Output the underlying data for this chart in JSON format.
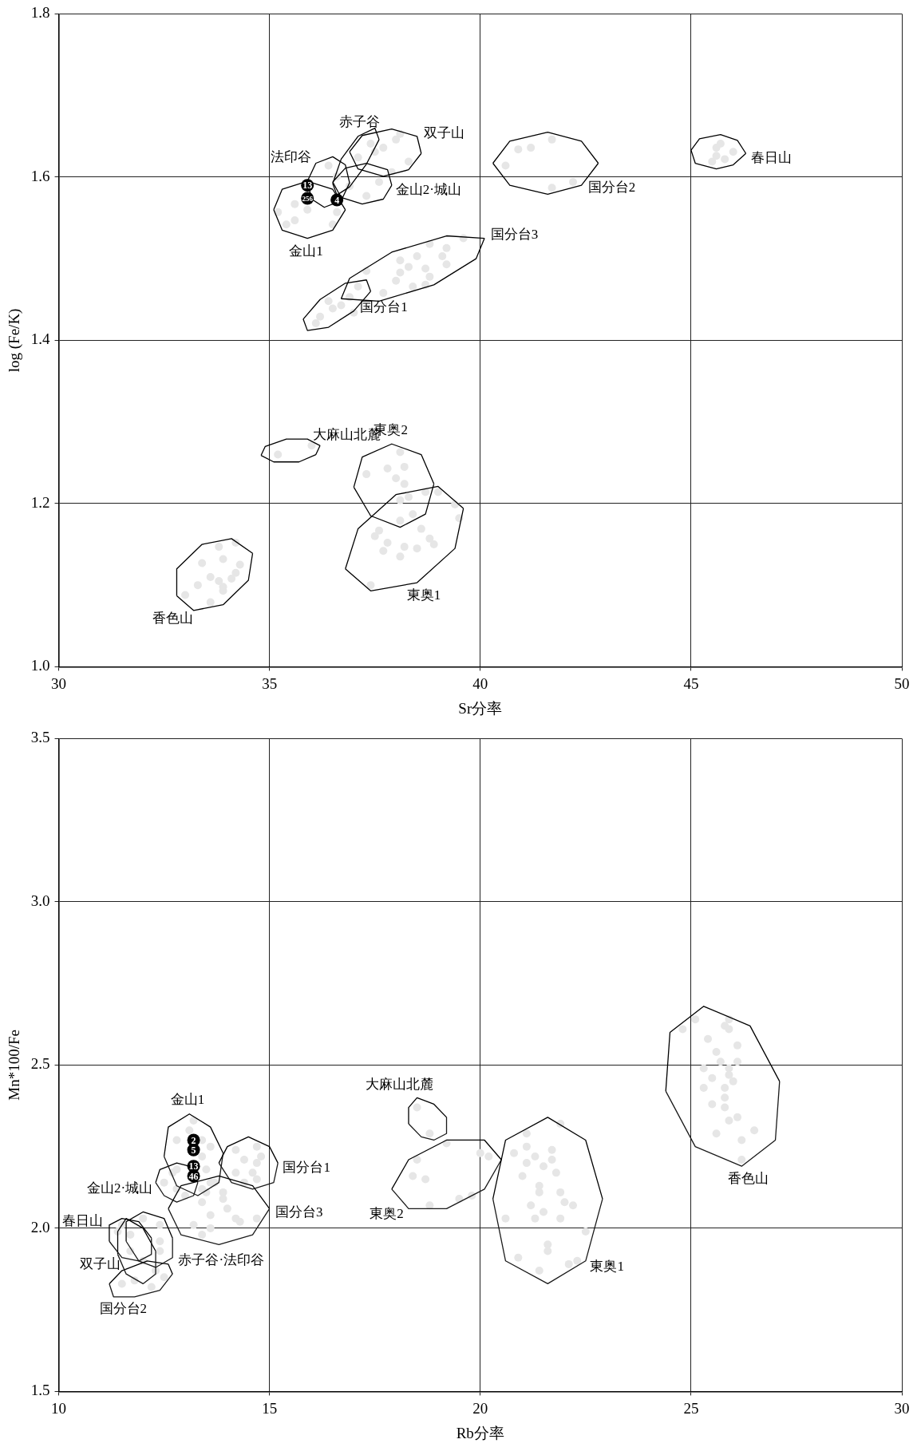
{
  "chart_data": [
    {
      "type": "scatter",
      "xlabel": "Sr分率",
      "ylabel": "log (Fe/K)",
      "xlim": [
        30,
        50
      ],
      "ylim": [
        1.0,
        1.8
      ],
      "xticks": [
        30,
        35,
        40,
        45,
        50
      ],
      "yticks": [
        {
          "value": 1,
          "label": "1.0"
        },
        1.2,
        1.4,
        1.6,
        1.8
      ],
      "grid": true,
      "series": [
        {
          "type": "scatter",
          "marker": "circle",
          "color": "#e6e6e6",
          "x": [
            45.7,
            46.0,
            45.8,
            45.6,
            45.5,
            45.6,
            41.7,
            41.2,
            40.9,
            40.6,
            42.2,
            41.7,
            39.6,
            39.2,
            38.8,
            39.1,
            39.2,
            38.7,
            38.8,
            38.7,
            38.4,
            38.5,
            38.1,
            38.0,
            37.7,
            37.3,
            38.3,
            38.1,
            37.1,
            36.9,
            36.7,
            36.5,
            36.2,
            36.1,
            37.0,
            36.4,
            38.1,
            38.0,
            37.7,
            38.3,
            37.9,
            37.4,
            37.1,
            36.4,
            36.6,
            37.6,
            37.3,
            36.6,
            36.5,
            35.9,
            35.6,
            35.2,
            35.4,
            35.6,
            36.9,
            37.5,
            38.1,
            38.2,
            37.8,
            37.3,
            38.0,
            38.2,
            39.0,
            38.7,
            38.3,
            38.1,
            39.4,
            39.5,
            38.4,
            38.1,
            38.6,
            38.8,
            38.9,
            38.5,
            37.6,
            37.5,
            37.8,
            37.7,
            38.1,
            38.2,
            37.4,
            36.0,
            35.2,
            34.2,
            33.8,
            33.9,
            34.3,
            34.2,
            34.1,
            33.9,
            33.9,
            33.4,
            33.6,
            33.3,
            33.0,
            33.6,
            33.8
          ],
          "values": [
            1.641,
            1.631,
            1.622,
            1.636,
            1.619,
            1.626,
            1.646,
            1.636,
            1.634,
            1.614,
            1.594,
            1.587,
            1.525,
            1.513,
            1.518,
            1.503,
            1.493,
            1.488,
            1.478,
            1.468,
            1.466,
            1.503,
            1.483,
            1.473,
            1.458,
            1.485,
            1.49,
            1.498,
            1.466,
            1.453,
            1.443,
            1.439,
            1.429,
            1.421,
            1.434,
            1.448,
            1.653,
            1.646,
            1.636,
            1.619,
            1.606,
            1.641,
            1.624,
            1.614,
            1.601,
            1.594,
            1.577,
            1.557,
            1.542,
            1.56,
            1.547,
            1.557,
            1.542,
            1.567,
            1.589,
            1.631,
            1.263,
            1.245,
            1.243,
            1.236,
            1.231,
            1.224,
            1.214,
            1.214,
            1.208,
            1.204,
            1.199,
            1.182,
            1.187,
            1.179,
            1.169,
            1.157,
            1.15,
            1.145,
            1.167,
            1.16,
            1.152,
            1.142,
            1.135,
            1.147,
            1.1,
            1.271,
            1.26,
            1.152,
            1.147,
            1.132,
            1.125,
            1.115,
            1.108,
            1.098,
            1.093,
            1.127,
            1.11,
            1.1,
            1.088,
            1.079,
            1.105
          ]
        },
        {
          "type": "line",
          "marker": "none",
          "color": "#000000",
          "x": [
            45.0,
            45.2,
            45.7,
            46.1,
            46.3
          ],
          "values": [
            1.633,
            1.647,
            1.652,
            1.645,
            1.629
          ]
        },
        {
          "type": "line",
          "marker": "none",
          "color": "#000000",
          "x": [
            45.0,
            45.1,
            45.6,
            46.0,
            46.3
          ],
          "values": [
            1.633,
            1.617,
            1.61,
            1.615,
            1.629
          ]
        },
        {
          "type": "line",
          "marker": "none",
          "color": "#000000",
          "x": [
            40.3,
            40.7,
            41.6,
            42.4,
            42.8
          ],
          "values": [
            1.617,
            1.644,
            1.655,
            1.644,
            1.617
          ]
        },
        {
          "type": "line",
          "marker": "none",
          "color": "#000000",
          "x": [
            40.3,
            40.7,
            41.6,
            42.4,
            42.8
          ],
          "values": [
            1.617,
            1.59,
            1.579,
            1.59,
            1.617
          ]
        },
        {
          "type": "line",
          "marker": "none",
          "color": "#000000",
          "x": [
            36.7,
            36.9,
            37.9,
            39.2,
            40.1
          ],
          "values": [
            1.451,
            1.476,
            1.508,
            1.528,
            1.525
          ]
        },
        {
          "type": "line",
          "marker": "none",
          "color": "#000000",
          "x": [
            36.7,
            37.6,
            38.9,
            39.9,
            40.1
          ],
          "values": [
            1.451,
            1.448,
            1.468,
            1.5,
            1.525
          ]
        },
        {
          "type": "line",
          "marker": "none",
          "color": "#000000",
          "x": [
            35.8,
            36.2,
            36.8,
            37.3,
            37.4
          ],
          "values": [
            1.426,
            1.45,
            1.47,
            1.474,
            1.46
          ]
        },
        {
          "type": "line",
          "marker": "none",
          "color": "#000000",
          "x": [
            35.8,
            35.9,
            36.4,
            37.0,
            37.4
          ],
          "values": [
            1.426,
            1.412,
            1.416,
            1.436,
            1.46
          ]
        },
        {
          "type": "line",
          "marker": "none",
          "color": "#000000",
          "x": [
            36.9,
            37.2,
            37.9,
            38.5,
            38.6
          ],
          "values": [
            1.631,
            1.651,
            1.659,
            1.65,
            1.629
          ]
        },
        {
          "type": "line",
          "marker": "none",
          "color": "#000000",
          "x": [
            36.9,
            37.1,
            37.7,
            38.3,
            38.6
          ],
          "values": [
            1.631,
            1.61,
            1.601,
            1.609,
            1.629
          ]
        },
        {
          "type": "line",
          "marker": "none",
          "color": "#000000",
          "x": [
            36.5,
            36.7,
            37.1,
            37.5,
            37.6
          ],
          "values": [
            1.592,
            1.622,
            1.65,
            1.66,
            1.646
          ]
        },
        {
          "type": "line",
          "marker": "none",
          "color": "#000000",
          "x": [
            36.5,
            36.6,
            36.9,
            37.3,
            37.6
          ],
          "values": [
            1.592,
            1.578,
            1.588,
            1.616,
            1.646
          ]
        },
        {
          "type": "line",
          "marker": "none",
          "color": "#000000",
          "x": [
            36.5,
            36.8,
            37.3,
            37.8,
            37.9
          ],
          "values": [
            1.594,
            1.611,
            1.617,
            1.609,
            1.59
          ]
        },
        {
          "type": "line",
          "marker": "none",
          "color": "#000000",
          "x": [
            36.5,
            36.7,
            37.2,
            37.7,
            37.9
          ],
          "values": [
            1.594,
            1.575,
            1.567,
            1.573,
            1.59
          ]
        },
        {
          "type": "line",
          "marker": "none",
          "color": "#000000",
          "x": [
            35.9,
            36.1,
            36.5,
            36.8,
            36.9
          ],
          "values": [
            1.595,
            1.617,
            1.625,
            1.615,
            1.593
          ]
        },
        {
          "type": "line",
          "marker": "none",
          "color": "#000000",
          "x": [
            35.9,
            36.0,
            36.3,
            36.7,
            36.9
          ],
          "values": [
            1.595,
            1.573,
            1.563,
            1.571,
            1.593
          ]
        },
        {
          "type": "line",
          "marker": "none",
          "color": "#000000",
          "x": [
            35.1,
            35.3,
            35.9,
            36.5,
            36.8
          ],
          "values": [
            1.56,
            1.585,
            1.595,
            1.585,
            1.56
          ]
        },
        {
          "type": "line",
          "marker": "none",
          "color": "#000000",
          "x": [
            35.1,
            35.3,
            35.9,
            36.5,
            36.8
          ],
          "values": [
            1.56,
            1.535,
            1.525,
            1.535,
            1.56
          ]
        },
        {
          "type": "line",
          "marker": "none",
          "color": "#000000",
          "x": [
            36.8,
            37.1,
            38.0,
            39.0,
            39.6
          ],
          "values": [
            1.12,
            1.169,
            1.211,
            1.221,
            1.194
          ]
        },
        {
          "type": "line",
          "marker": "none",
          "color": "#000000",
          "x": [
            36.8,
            37.4,
            38.5,
            39.4,
            39.6
          ],
          "values": [
            1.12,
            1.093,
            1.103,
            1.145,
            1.194
          ]
        },
        {
          "type": "line",
          "marker": "none",
          "color": "#000000",
          "x": [
            37.0,
            37.2,
            37.9,
            38.6,
            38.9
          ],
          "values": [
            1.22,
            1.257,
            1.273,
            1.26,
            1.224
          ]
        },
        {
          "type": "line",
          "marker": "none",
          "color": "#000000",
          "x": [
            37.0,
            37.4,
            38.1,
            38.7,
            38.9
          ],
          "values": [
            1.22,
            1.185,
            1.171,
            1.187,
            1.224
          ]
        },
        {
          "type": "line",
          "marker": "none",
          "color": "#000000",
          "x": [
            34.8,
            34.9,
            35.4,
            35.9,
            36.2
          ],
          "values": [
            1.259,
            1.27,
            1.279,
            1.279,
            1.271
          ]
        },
        {
          "type": "line",
          "marker": "none",
          "color": "#000000",
          "x": [
            34.8,
            35.1,
            35.7,
            36.1,
            36.2
          ],
          "values": [
            1.259,
            1.251,
            1.251,
            1.26,
            1.271
          ]
        },
        {
          "type": "line",
          "marker": "none",
          "color": "#000000",
          "x": [
            32.8,
            32.8,
            33.4,
            34.1,
            34.6
          ],
          "values": [
            1.087,
            1.12,
            1.15,
            1.157,
            1.139
          ]
        },
        {
          "type": "line",
          "marker": "none",
          "color": "#000000",
          "x": [
            32.8,
            33.2,
            33.9,
            34.5,
            34.6
          ],
          "values": [
            1.087,
            1.069,
            1.076,
            1.106,
            1.139
          ]
        },
        {
          "type": "scatter",
          "marker": "circle",
          "color": "#000000",
          "x": [
            36.6,
            35.9,
            35.9
          ],
          "values": [
            1.572,
            1.59,
            1.574
          ]
        }
      ],
      "annotations": [
        {
          "text": "4",
          "x": 36.6,
          "y": 1.572
        },
        {
          "text": "13",
          "x": 35.9,
          "y": 1.59
        },
        {
          "text": "256",
          "x": 35.9,
          "y": 1.574
        },
        {
          "text": "春日山",
          "x": 46.3,
          "y": 1.629
        },
        {
          "text": "国分台2",
          "x": 42.4,
          "y": 1.59
        },
        {
          "text": "国分台3",
          "x": 40.1,
          "y": 1.525
        },
        {
          "text": "国分台1",
          "x": 37.0,
          "y": 1.436
        },
        {
          "text": "双子山",
          "x": 38.5,
          "y": 1.65
        },
        {
          "text": "赤子谷",
          "x": 37.1,
          "y": 1.65
        },
        {
          "text": "金山2·城山",
          "x": 37.9,
          "y": 1.59
        },
        {
          "text": "法印谷",
          "x": 36.1,
          "y": 1.617
        },
        {
          "text": "金山1",
          "x": 35.9,
          "y": 1.525
        },
        {
          "text": "東奥1",
          "x": 38.5,
          "y": 1.103
        },
        {
          "text": "東奥2",
          "x": 37.9,
          "y": 1.273
        },
        {
          "text": "大麻山北麓",
          "x": 35.9,
          "y": 1.279
        },
        {
          "text": "香色山",
          "x": 33.2,
          "y": 1.069
        }
      ]
    },
    {
      "type": "scatter",
      "xlabel": "Rb分率",
      "ylabel": "Mn*100/Fe",
      "xlim": [
        10,
        30
      ],
      "ylim": [
        1.5,
        3.5
      ],
      "xticks": [
        10,
        15,
        20,
        25,
        30
      ],
      "yticks": [
        1.5,
        {
          "value": 2,
          "label": "2.0"
        },
        2.5,
        {
          "value": 3,
          "label": "3.0"
        },
        3.5
      ],
      "grid": true,
      "series": [
        {
          "type": "scatter",
          "marker": "circle",
          "color": "#e6e6e6",
          "x": [
            25.9,
            25.8,
            25.9,
            25.4,
            25.1,
            24.8,
            26.1,
            25.6,
            26.1,
            25.7,
            25.9,
            25.3,
            25.9,
            25.5,
            26.0,
            25.8,
            25.3,
            25.8,
            25.5,
            25.8,
            26.1,
            25.9,
            26.5,
            25.6,
            26.2,
            26.2,
            21.9,
            21.1,
            21.1,
            21.7,
            20.8,
            21.3,
            21.7,
            21.1,
            21.5,
            21.8,
            21.0,
            21.4,
            21.9,
            21.4,
            21.2,
            22.2,
            21.5,
            20.6,
            21.9,
            21.3,
            22.5,
            21.6,
            21.6,
            20.9,
            22.3,
            22.1,
            21.4,
            22.0,
            20.0,
            20.2,
            19.2,
            19.8,
            19.5,
            18.8,
            18.7,
            18.4,
            18.5,
            18.5,
            18.8,
            14.7,
            14.8,
            14.7,
            14.6,
            14.7,
            14.4,
            14.4,
            14.2,
            14.2,
            14.7,
            14.3,
            14.0,
            13.9,
            13.9,
            13.4,
            13.6,
            13.6,
            13.4,
            13.2,
            13.5,
            13.6,
            14.2,
            13.2,
            13.1,
            12.8,
            13.6,
            13.4,
            13.4,
            13.5,
            13.7,
            12.8,
            13.4,
            12.7,
            12.8,
            13.0,
            12.5,
            12.0,
            12.4,
            11.4,
            12.4,
            12.4,
            12.0,
            12.3,
            12.5,
            11.8,
            12.2,
            11.5,
            11.7,
            11.7,
            11.5
          ],
          "values": [
            2.64,
            2.62,
            2.61,
            2.58,
            2.64,
            2.61,
            2.56,
            2.54,
            2.51,
            2.51,
            2.49,
            2.49,
            2.47,
            2.46,
            2.45,
            2.43,
            2.43,
            2.4,
            2.38,
            2.37,
            2.34,
            2.33,
            2.3,
            2.29,
            2.27,
            2.21,
            2.32,
            2.29,
            2.25,
            2.24,
            2.23,
            2.22,
            2.21,
            2.2,
            2.19,
            2.17,
            2.16,
            2.13,
            2.11,
            2.11,
            2.07,
            2.07,
            2.05,
            2.03,
            2.03,
            2.03,
            1.99,
            1.95,
            1.93,
            1.91,
            1.9,
            1.89,
            1.87,
            2.08,
            2.23,
            2.22,
            2.26,
            2.1,
            2.09,
            2.07,
            2.15,
            2.16,
            2.21,
            2.37,
            2.29,
            2.25,
            2.22,
            2.2,
            2.17,
            2.15,
            2.14,
            2.21,
            2.17,
            2.24,
            2.03,
            2.02,
            2.06,
            2.09,
            2.11,
            2.08,
            2.04,
            2.0,
            1.98,
            2.01,
            2.11,
            2.14,
            2.03,
            2.33,
            2.3,
            2.27,
            2.25,
            2.22,
            2.27,
            2.18,
            2.14,
            2.18,
            2.12,
            2.17,
            2.12,
            2.1,
            2.14,
            2.03,
            2.01,
            1.99,
            1.96,
            1.93,
            1.9,
            1.87,
            1.85,
            1.84,
            1.82,
            1.83,
            1.93,
            1.98,
            2.01
          ]
        },
        {
          "type": "line",
          "marker": "none",
          "color": "#000000",
          "x": [
            24.4,
            24.5,
            25.3,
            26.4,
            27.1
          ],
          "values": [
            2.42,
            2.6,
            2.68,
            2.62,
            2.45
          ]
        },
        {
          "type": "line",
          "marker": "none",
          "color": "#1a1a1a",
          "x": [
            24.4,
            25.1,
            26.2,
            27.0,
            27.1
          ],
          "values": [
            2.42,
            2.25,
            2.19,
            2.27,
            2.45
          ]
        },
        {
          "type": "line",
          "marker": "none",
          "color": "#000000",
          "x": [
            20.3,
            20.6,
            21.6,
            22.5,
            22.9
          ],
          "values": [
            2.09,
            2.27,
            2.34,
            2.27,
            2.09
          ]
        },
        {
          "type": "line",
          "marker": "none",
          "color": "#1a1a1a",
          "x": [
            20.3,
            20.6,
            21.6,
            22.5,
            22.9
          ],
          "values": [
            2.09,
            1.9,
            1.83,
            1.9,
            2.09
          ]
        },
        {
          "type": "line",
          "marker": "none",
          "color": "#000000",
          "x": [
            17.9,
            18.3,
            19.2,
            20.1,
            20.5
          ],
          "values": [
            2.12,
            2.21,
            2.27,
            2.27,
            2.21
          ]
        },
        {
          "type": "line",
          "marker": "none",
          "color": "#1a1a1a",
          "x": [
            17.9,
            18.3,
            19.2,
            20.1,
            20.5
          ],
          "values": [
            2.12,
            2.06,
            2.06,
            2.12,
            2.21
          ]
        },
        {
          "type": "line",
          "marker": "none",
          "color": "#000000",
          "x": [
            18.3,
            18.3,
            18.5,
            18.9,
            19.2
          ],
          "values": [
            2.32,
            2.37,
            2.4,
            2.38,
            2.34
          ]
        },
        {
          "type": "line",
          "marker": "none",
          "color": "#1a1a1a",
          "x": [
            18.3,
            18.6,
            18.9,
            19.2,
            19.2
          ],
          "values": [
            2.32,
            2.28,
            2.27,
            2.29,
            2.34
          ]
        },
        {
          "type": "line",
          "marker": "none",
          "color": "#000000",
          "x": [
            13.8,
            14.0,
            14.5,
            15.0,
            15.2
          ],
          "values": [
            2.2,
            2.25,
            2.28,
            2.25,
            2.2
          ]
        },
        {
          "type": "line",
          "marker": "none",
          "color": "#1a1a1a",
          "x": [
            13.8,
            14.1,
            14.6,
            15.1,
            15.2
          ],
          "values": [
            2.2,
            2.14,
            2.12,
            2.14,
            2.2
          ]
        },
        {
          "type": "line",
          "marker": "none",
          "color": "#000000",
          "x": [
            12.6,
            12.9,
            13.8,
            14.6,
            15.0
          ],
          "values": [
            2.06,
            2.13,
            2.16,
            2.13,
            2.06
          ]
        },
        {
          "type": "line",
          "marker": "none",
          "color": "#1a1a1a",
          "x": [
            12.6,
            12.9,
            13.8,
            14.6,
            15.0
          ],
          "values": [
            2.06,
            1.98,
            1.95,
            1.98,
            2.06
          ]
        },
        {
          "type": "line",
          "marker": "none",
          "color": "#000000",
          "x": [
            12.5,
            12.6,
            13.1,
            13.6,
            13.9
          ],
          "values": [
            2.22,
            2.31,
            2.35,
            2.31,
            2.23
          ]
        },
        {
          "type": "line",
          "marker": "none",
          "color": "#1a1a1a",
          "x": [
            12.5,
            12.8,
            13.3,
            13.8,
            13.9
          ],
          "values": [
            2.22,
            2.13,
            2.1,
            2.14,
            2.23
          ]
        },
        {
          "type": "line",
          "marker": "none",
          "color": "#000000",
          "x": [
            12.3,
            12.4,
            12.8,
            13.1,
            13.3
          ],
          "values": [
            2.14,
            2.18,
            2.2,
            2.19,
            2.14
          ]
        },
        {
          "type": "line",
          "marker": "none",
          "color": "#1a1a1a",
          "x": [
            12.3,
            12.5,
            12.8,
            13.2,
            13.3
          ],
          "values": [
            2.14,
            2.1,
            2.08,
            2.1,
            2.14
          ]
        },
        {
          "type": "line",
          "marker": "none",
          "color": "#000000",
          "x": [
            11.2,
            11.2,
            11.5,
            11.9,
            12.2
          ],
          "values": [
            1.96,
            2.01,
            2.03,
            2.02,
            1.97
          ]
        },
        {
          "type": "line",
          "marker": "none",
          "color": "#1a1a1a",
          "x": [
            11.2,
            11.5,
            11.9,
            12.2,
            12.2
          ],
          "values": [
            1.96,
            1.91,
            1.9,
            1.92,
            1.97
          ]
        },
        {
          "type": "line",
          "marker": "none",
          "color": "#000000",
          "x": [
            11.6,
            11.6,
            12.0,
            12.5,
            12.7
          ],
          "values": [
            1.96,
            2.02,
            2.05,
            2.03,
            1.97
          ]
        },
        {
          "type": "line",
          "marker": "none",
          "color": "#1a1a1a",
          "x": [
            11.6,
            11.9,
            12.3,
            12.7,
            12.7
          ],
          "values": [
            1.96,
            1.9,
            1.88,
            1.91,
            1.97
          ]
        },
        {
          "type": "line",
          "marker": "none",
          "color": "#000000",
          "x": [
            11.4,
            11.4,
            11.6,
            12.0,
            12.3
          ],
          "values": [
            1.92,
            1.99,
            2.03,
            2.0,
            1.93
          ]
        },
        {
          "type": "line",
          "marker": "none",
          "color": "#1a1a1a",
          "x": [
            11.4,
            11.6,
            12.0,
            12.3,
            12.3
          ],
          "values": [
            1.92,
            1.86,
            1.83,
            1.86,
            1.93
          ]
        },
        {
          "type": "line",
          "marker": "none",
          "color": "#000000",
          "x": [
            11.2,
            11.5,
            12.1,
            12.6,
            12.7
          ],
          "values": [
            1.83,
            1.87,
            1.9,
            1.89,
            1.86
          ]
        },
        {
          "type": "line",
          "marker": "none",
          "color": "#1a1a1a",
          "x": [
            11.2,
            11.3,
            11.8,
            12.4,
            12.7
          ],
          "values": [
            1.83,
            1.79,
            1.79,
            1.81,
            1.86
          ]
        },
        {
          "type": "scatter",
          "marker": "circle",
          "color": "#000000",
          "x": [
            13.2,
            13.2,
            13.2,
            13.2
          ],
          "values": [
            2.27,
            2.24,
            2.19,
            2.16
          ]
        }
      ],
      "annotations": [
        {
          "text": "2",
          "x": 13.2,
          "y": 2.27
        },
        {
          "text": "5",
          "x": 13.2,
          "y": 2.24
        },
        {
          "text": "13",
          "x": 13.2,
          "y": 2.19
        },
        {
          "text": "46",
          "x": 13.2,
          "y": 2.16
        },
        {
          "text": "香色山",
          "x": 26.2,
          "y": 2.19
        },
        {
          "text": "東奥1",
          "x": 22.5,
          "y": 1.9
        },
        {
          "text": "東奥2",
          "x": 18.3,
          "y": 2.06
        },
        {
          "text": "大麻山北麓",
          "x": 18.5,
          "y": 2.4
        },
        {
          "text": "国分台1",
          "x": 15.2,
          "y": 2.2
        },
        {
          "text": "国分台3",
          "x": 15.0,
          "y": 2.06
        },
        {
          "text": "赤子谷·法印谷",
          "x": 12.7,
          "y": 1.91
        },
        {
          "text": "国分台2",
          "x": 11.8,
          "y": 1.79
        },
        {
          "text": "双子山",
          "x": 11.4,
          "y": 1.92
        },
        {
          "text": "春日山",
          "x": 11.2,
          "y": 2.01
        },
        {
          "text": "金山2·城山",
          "x": 12.3,
          "y": 2.14
        },
        {
          "text": "金山1",
          "x": 13.1,
          "y": 2.35
        }
      ]
    }
  ]
}
